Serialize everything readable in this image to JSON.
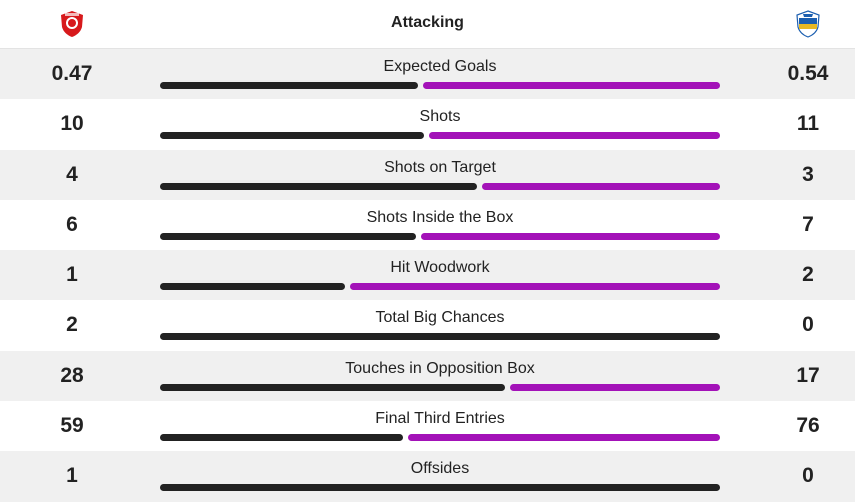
{
  "header": {
    "title": "Attacking",
    "home_crest_icon": "aberdeen-crest-icon",
    "away_crest_icon": "kilmarnock-crest-icon"
  },
  "colors": {
    "home": "#222222",
    "away": "#a312b8",
    "home_crest": "#d7191c",
    "away_crest": "#1c5fb0"
  },
  "stats": [
    {
      "label": "Expected Goals",
      "home": "0.47",
      "away": "0.54",
      "home_value": 0.47,
      "away_value": 0.54
    },
    {
      "label": "Shots",
      "home": "10",
      "away": "11",
      "home_value": 10,
      "away_value": 11
    },
    {
      "label": "Shots on Target",
      "home": "4",
      "away": "3",
      "home_value": 4,
      "away_value": 3
    },
    {
      "label": "Shots Inside the Box",
      "home": "6",
      "away": "7",
      "home_value": 6,
      "away_value": 7
    },
    {
      "label": "Hit Woodwork",
      "home": "1",
      "away": "2",
      "home_value": 1,
      "away_value": 2
    },
    {
      "label": "Total Big Chances",
      "home": "2",
      "away": "0",
      "home_value": 2,
      "away_value": 0
    },
    {
      "label": "Touches in Opposition Box",
      "home": "28",
      "away": "17",
      "home_value": 28,
      "away_value": 17
    },
    {
      "label": "Final Third Entries",
      "home": "59",
      "away": "76",
      "home_value": 59,
      "away_value": 76
    },
    {
      "label": "Offsides",
      "home": "1",
      "away": "0",
      "home_value": 1,
      "away_value": 0
    }
  ]
}
